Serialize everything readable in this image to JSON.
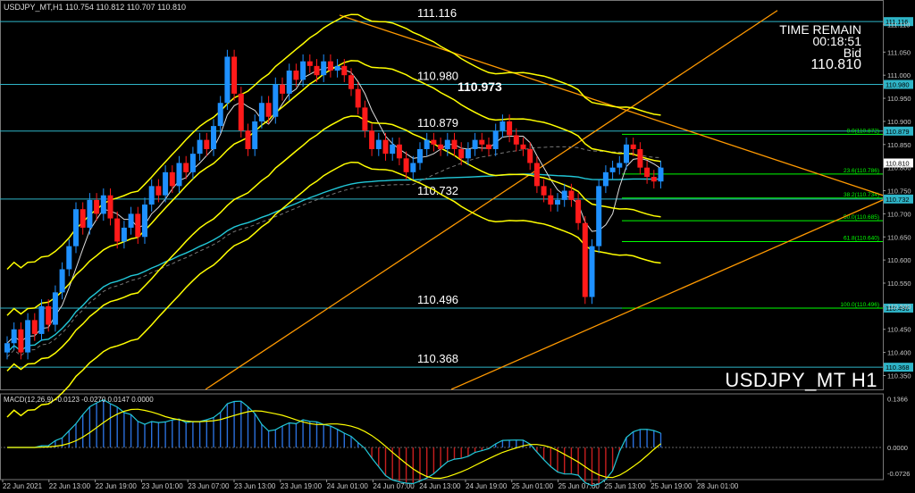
{
  "header": {
    "symbol_line": "USDJPY_MT,H1  110.754 110.812 110.707 110.810"
  },
  "time_remain": {
    "label": "TIME REMAIN",
    "value": "00:18:51",
    "bid_label": "Bid",
    "bid_value": "110.810"
  },
  "watermark": "USDJPY_MT H1",
  "macd_label": "MACD(12,26,9) -0.0123 -0.0270 0.0147 0.0000",
  "colors": {
    "background": "#000000",
    "bull": "#1e90ff",
    "bear": "#ff1a1a",
    "bands": "#ffff00",
    "ma_cyan": "#22c8d8",
    "trendline": "#ff9900",
    "fib": "#00ff00"
  },
  "chart_data": {
    "type": "candlestick",
    "symbol": "USDJPY_MT",
    "timeframe": "H1",
    "y_range": [
      110.32,
      111.155
    ],
    "y_ticks": [
      111.11,
      111.05,
      111.0,
      110.95,
      110.9,
      110.85,
      110.8,
      110.75,
      110.7,
      110.65,
      110.6,
      110.55,
      110.5,
      110.45,
      110.4,
      110.35
    ],
    "x_ticks": [
      "22 Jun 2021",
      "22 Jun 13:00",
      "22 Jun 19:00",
      "23 Jun 01:00",
      "23 Jun 07:00",
      "23 Jun 13:00",
      "23 Jun 19:00",
      "24 Jun 01:00",
      "24 Jun 07:00",
      "24 Jun 13:00",
      "24 Jun 19:00",
      "25 Jun 01:00",
      "25 Jun 07:00",
      "25 Jun 13:00",
      "25 Jun 19:00",
      "28 Jun 01:00"
    ],
    "levels": [
      {
        "label": "111.116",
        "value": 111.116,
        "tag": "111.116"
      },
      {
        "label": "110.980",
        "value": 110.98,
        "tag": "110.980"
      },
      {
        "label": "110.879",
        "value": 110.879,
        "tag": "110.879"
      },
      {
        "label": "110.732",
        "value": 110.732,
        "tag": "110.732"
      },
      {
        "label": "110.496",
        "value": 110.496,
        "tag": "110.496"
      },
      {
        "label": "110.368",
        "value": 110.368,
        "tag": "110.368"
      }
    ],
    "high_label": "110.973",
    "current_price_tag": "110.810",
    "fibonacci": [
      {
        "label": "0.0(110.872)",
        "value": 110.872
      },
      {
        "label": "23.6(110.786)",
        "value": 110.786
      },
      {
        "label": "38.2(110.734)",
        "value": 110.734
      },
      {
        "label": "50.0(110.685)",
        "value": 110.685
      },
      {
        "label": "61.8(110.640)",
        "value": 110.64
      },
      {
        "label": "100.0(110.496)",
        "value": 110.496
      }
    ],
    "closes": [
      110.42,
      110.45,
      110.4,
      110.47,
      110.44,
      110.5,
      110.46,
      110.53,
      110.58,
      110.63,
      110.71,
      110.67,
      110.73,
      110.7,
      110.74,
      110.69,
      110.64,
      110.67,
      110.7,
      110.65,
      110.72,
      110.76,
      110.74,
      110.79,
      110.76,
      110.81,
      110.79,
      110.83,
      110.86,
      110.84,
      110.89,
      110.94,
      111.04,
      110.96,
      110.88,
      110.84,
      110.9,
      110.94,
      110.91,
      110.98,
      110.96,
      111.01,
      110.99,
      111.03,
      111.02,
      111.0,
      111.03,
      111.01,
      111.02,
      111.0,
      110.97,
      110.93,
      110.88,
      110.84,
      110.86,
      110.83,
      110.85,
      110.82,
      110.79,
      110.81,
      110.84,
      110.86,
      110.85,
      110.84,
      110.86,
      110.84,
      110.82,
      110.84,
      110.86,
      110.85,
      110.84,
      110.88,
      110.9,
      110.87,
      110.85,
      110.84,
      110.81,
      110.76,
      110.74,
      110.72,
      110.73,
      110.75,
      110.73,
      110.68,
      110.52,
      110.63,
      110.76,
      110.79,
      110.8,
      110.81,
      110.85,
      110.84,
      110.8,
      110.78,
      110.77,
      110.8
    ],
    "macd": {
      "label": "MACD(12,26,9) -0.0123 -0.0270 0.0147 0.0000",
      "y_range": [
        -0.09,
        0.15
      ],
      "y_ticks": [
        0.1366,
        0.0,
        -0.0726
      ]
    }
  }
}
